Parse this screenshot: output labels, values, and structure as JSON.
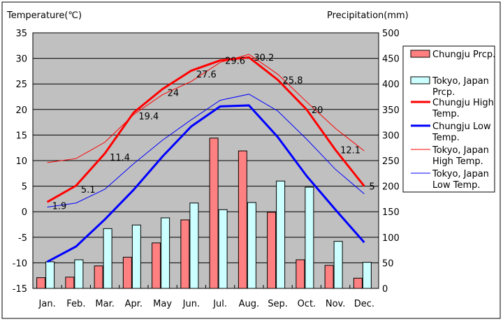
{
  "chart_data": {
    "type": "bar+line",
    "title": "",
    "ylabel": "Temperature(℃)",
    "ylabel_right": "Precipitation(mm)",
    "ylim": [
      -15,
      35
    ],
    "ylim_right": [
      0,
      500
    ],
    "yticks": [
      -15,
      -10,
      -5,
      0,
      5,
      10,
      15,
      20,
      25,
      30,
      35
    ],
    "yticks_right": [
      0,
      50,
      100,
      150,
      200,
      250,
      300,
      350,
      400,
      450,
      500
    ],
    "categories": [
      "Jan.",
      "Feb.",
      "Mar.",
      "Apr.",
      "May",
      "Jun.",
      "Jul.",
      "Aug.",
      "Sep.",
      "Oct.",
      "Nov.",
      "Dec."
    ],
    "legend_position": "right",
    "grid": true,
    "bar_series": [
      {
        "name": "Chungju Prcp.",
        "color": "#ff8080",
        "values": [
          21,
          22,
          44,
          61,
          89,
          134,
          294,
          269,
          149,
          56,
          45,
          20
        ]
      },
      {
        "name": "Tokyo, Japan Prcp.",
        "color": "#ccffff",
        "values": [
          52,
          56,
          117,
          124,
          138,
          167,
          154,
          168,
          210,
          198,
          92,
          51
        ]
      }
    ],
    "line_series": [
      {
        "name": "Chungju High Temp.",
        "color": "#ff0000",
        "width": 3,
        "values": [
          1.9,
          5.1,
          11.4,
          19.4,
          24,
          27.6,
          29.6,
          30.2,
          25.8,
          20,
          12.1,
          5
        ],
        "labels": [
          "1.9",
          "5.1",
          "11.4",
          "19.4",
          "24",
          "27.6",
          "29.6",
          "30.2",
          "25.8",
          "20",
          "12.1",
          "5"
        ]
      },
      {
        "name": "Chungju Low Temp.",
        "color": "#0000ff",
        "width": 3,
        "values": [
          -9.8,
          -6.8,
          -1.5,
          4.3,
          10.8,
          16.7,
          20.6,
          20.8,
          14.6,
          7.0,
          0.4,
          -6.0
        ]
      },
      {
        "name": "Tokyo, Japan High Temp.",
        "color": "#ff0000",
        "width": 1,
        "values": [
          9.6,
          10.4,
          13.6,
          19.0,
          22.9,
          25.5,
          29.2,
          30.8,
          26.9,
          21.5,
          16.3,
          11.9
        ]
      },
      {
        "name": "Tokyo, Japan Low Temp.",
        "color": "#0000ff",
        "width": 1,
        "values": [
          0.9,
          1.7,
          4.4,
          9.4,
          14.0,
          18.0,
          21.8,
          23.0,
          19.7,
          14.2,
          8.3,
          3.5
        ]
      }
    ],
    "legend": [
      {
        "text": [
          "Chungju Prcp."
        ]
      },
      {
        "text": [
          "Tokyo, Japan",
          "Prcp."
        ]
      },
      {
        "text": [
          "Chungju High",
          "Temp."
        ]
      },
      {
        "text": [
          "Chungju Low",
          "Temp."
        ]
      },
      {
        "text": [
          "Tokyo, Japan",
          "High Temp."
        ]
      },
      {
        "text": [
          "Tokyo, Japan",
          "Low Temp."
        ]
      }
    ]
  }
}
